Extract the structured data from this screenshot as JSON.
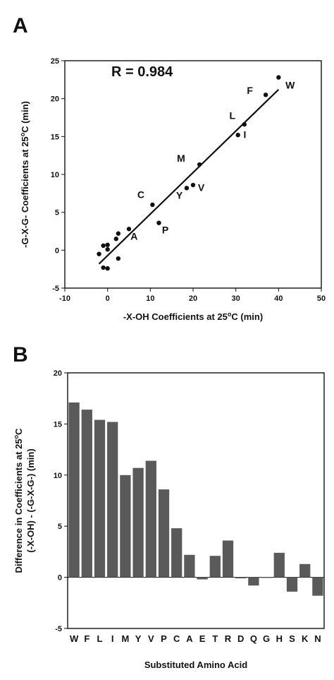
{
  "panel_a_letter": "A",
  "panel_b_letter": "B",
  "chart_data": [
    {
      "type": "scatter",
      "panel": "A",
      "xlabel": "-X-OH Coefficients at 25",
      "xlabel_sup": "o",
      "xlabel_tail": "C (min)",
      "ylabel": "-G-X-G- Coefficients at 25",
      "ylabel_sup": "o",
      "ylabel_tail": "C (min)",
      "xlim": [
        -10,
        50
      ],
      "ylim": [
        -5,
        25
      ],
      "xticks": [
        -10,
        0,
        10,
        20,
        30,
        40,
        50
      ],
      "yticks": [
        -5,
        0,
        5,
        10,
        15,
        20,
        25
      ],
      "annotation": "R = 0.984",
      "points": [
        {
          "x": -2.0,
          "y": -0.5
        },
        {
          "x": -1.0,
          "y": 0.6
        },
        {
          "x": 0.0,
          "y": 0.7
        },
        {
          "x": 0.0,
          "y": 0.1
        },
        {
          "x": -1.0,
          "y": -2.3
        },
        {
          "x": 0.0,
          "y": -2.4
        },
        {
          "x": 2.0,
          "y": 1.5
        },
        {
          "x": 2.5,
          "y": 2.2
        },
        {
          "x": 2.5,
          "y": -1.1
        },
        {
          "x": 5.0,
          "y": 2.8
        },
        {
          "x": 10.5,
          "y": 6.0
        },
        {
          "x": 12.0,
          "y": 3.6
        },
        {
          "x": 18.5,
          "y": 8.2
        },
        {
          "x": 20.0,
          "y": 8.6
        },
        {
          "x": 21.5,
          "y": 11.3
        },
        {
          "x": 30.5,
          "y": 15.2
        },
        {
          "x": 32.0,
          "y": 16.6
        },
        {
          "x": 37.0,
          "y": 20.5
        },
        {
          "x": 40.0,
          "y": 22.8
        }
      ],
      "labels": [
        {
          "text": "W",
          "x": 42.7,
          "y": 21.3
        },
        {
          "text": "F",
          "x": 33.3,
          "y": 20.6
        },
        {
          "text": "L",
          "x": 29.2,
          "y": 17.3
        },
        {
          "text": "I",
          "x": 32.1,
          "y": 14.8
        },
        {
          "text": "M",
          "x": 17.2,
          "y": 11.7
        },
        {
          "text": "V",
          "x": 21.9,
          "y": 7.8
        },
        {
          "text": "Y",
          "x": 16.8,
          "y": 6.8
        },
        {
          "text": "C",
          "x": 7.8,
          "y": 6.9
        },
        {
          "text": "P",
          "x": 13.5,
          "y": 2.2
        },
        {
          "text": "A",
          "x": 6.2,
          "y": 1.4
        }
      ],
      "fit_line": {
        "x": [
          -2,
          40
        ],
        "y": [
          -1.8,
          21.2
        ]
      }
    },
    {
      "type": "bar",
      "panel": "B",
      "xlabel": "Substituted Amino Acid",
      "ylabel_line1": "Difference in Coefficients at 25",
      "ylabel_line1_sup": "o",
      "ylabel_line1_tail": "C",
      "ylabel_line2": "(-X-OH) - (-G-X-G-) (min)",
      "ylim": [
        -5,
        20
      ],
      "yticks": [
        -5,
        0,
        5,
        10,
        15,
        20
      ],
      "categories": [
        "W",
        "F",
        "L",
        "I",
        "M",
        "Y",
        "V",
        "P",
        "C",
        "A",
        "E",
        "T",
        "R",
        "D",
        "Q",
        "G",
        "H",
        "S",
        "K",
        "N"
      ],
      "values": [
        17.1,
        16.4,
        15.4,
        15.2,
        10.0,
        10.7,
        11.4,
        8.6,
        4.8,
        2.2,
        -0.2,
        2.1,
        3.6,
        -0.1,
        -0.8,
        0.0,
        2.4,
        -1.4,
        1.3,
        -1.8
      ],
      "bar_color": "#5a5a5a"
    }
  ]
}
